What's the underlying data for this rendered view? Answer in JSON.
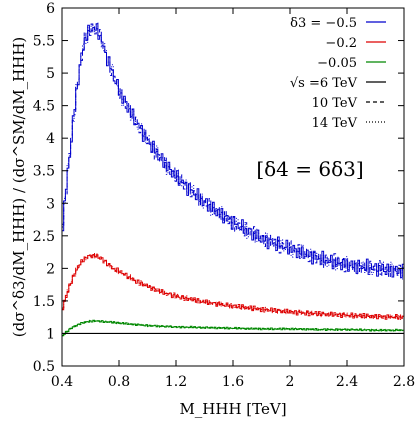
{
  "chart_data": {
    "type": "line",
    "xlabel": "M_HHH [TeV]",
    "ylabel": "(dσ^δ3/dM_HHH) / (dσ^SM/dM_HHH)",
    "xlim": [
      0.4,
      2.8
    ],
    "ylim": [
      0.5,
      6
    ],
    "x_ticks": [
      "0.4",
      "0.8",
      "1.2",
      "1.6",
      "2",
      "2.4",
      "2.8"
    ],
    "y_ticks": [
      "0.5",
      "1",
      "1.5",
      "2",
      "2.5",
      "3",
      "3.5",
      "4",
      "4.5",
      "5",
      "5.5",
      "6"
    ],
    "annotation": "[δ4 = 6δ3]",
    "legend_position": "top-right",
    "grid": false,
    "x": [
      0.4,
      0.45,
      0.5,
      0.55,
      0.6,
      0.65,
      0.7,
      0.75,
      0.8,
      0.9,
      1.0,
      1.1,
      1.2,
      1.4,
      1.6,
      1.8,
      2.0,
      2.2,
      2.4,
      2.6,
      2.8
    ],
    "series": [
      {
        "name": "δ3 = −0.5",
        "color": "#0000cc",
        "values": [
          2.7,
          3.8,
          4.8,
          5.5,
          5.7,
          5.65,
          5.3,
          5.0,
          4.7,
          4.3,
          3.95,
          3.65,
          3.4,
          3.0,
          2.7,
          2.45,
          2.3,
          2.15,
          2.05,
          2.0,
          1.95
        ]
      },
      {
        "name": "−0.2",
        "color": "#dd0000",
        "values": [
          1.4,
          1.75,
          2.0,
          2.15,
          2.2,
          2.18,
          2.1,
          2.0,
          1.95,
          1.82,
          1.72,
          1.63,
          1.57,
          1.48,
          1.42,
          1.37,
          1.33,
          1.3,
          1.28,
          1.26,
          1.25
        ]
      },
      {
        "name": "−0.05",
        "color": "#008800",
        "values": [
          0.97,
          1.07,
          1.13,
          1.17,
          1.19,
          1.19,
          1.18,
          1.17,
          1.16,
          1.14,
          1.12,
          1.11,
          1.1,
          1.09,
          1.08,
          1.07,
          1.07,
          1.06,
          1.06,
          1.05,
          1.05
        ]
      },
      {
        "name": "SM",
        "color": "#000000",
        "values": [
          1,
          1,
          1,
          1,
          1,
          1,
          1,
          1,
          1,
          1,
          1,
          1,
          1,
          1,
          1,
          1,
          1,
          1,
          1,
          1,
          1
        ]
      }
    ],
    "legend": [
      {
        "label": "δ3 = −0.5",
        "style": "solid",
        "color": "#0000cc"
      },
      {
        "label": "−0.2",
        "style": "solid",
        "color": "#dd0000"
      },
      {
        "label": "−0.05",
        "style": "solid",
        "color": "#008800"
      },
      {
        "label": "√s =6 TeV",
        "style": "solid",
        "color": "#000000"
      },
      {
        "label": "10 TeV",
        "style": "dashed",
        "color": "#000000"
      },
      {
        "label": "14 TeV",
        "style": "dotted",
        "color": "#000000"
      }
    ]
  }
}
